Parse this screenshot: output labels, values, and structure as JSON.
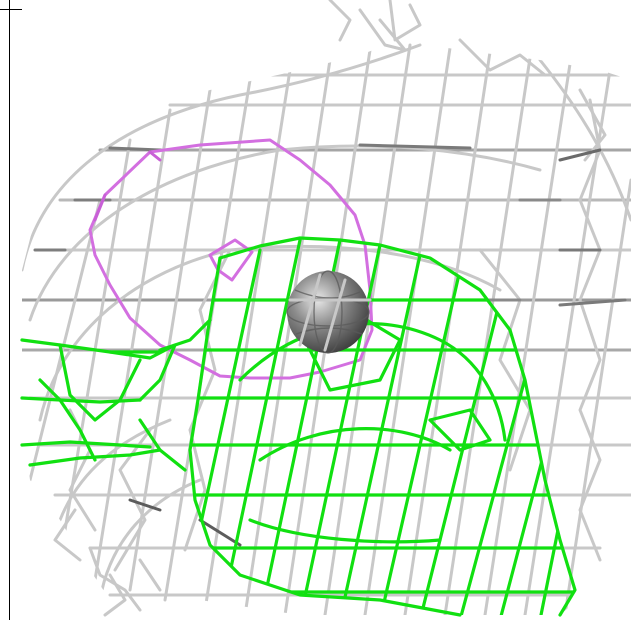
{
  "colors": {
    "background": "#ffffff",
    "mesh_grey": "#c8c8c8",
    "mesh_grey_dark": "#8a8a8a",
    "mesh_magenta": "#d36fe0",
    "mesh_green": "#11e011",
    "sphere": "#7c7c7c"
  },
  "icons": {
    "grey": "grey-wireframe-mesh",
    "magenta": "magenta-wireframe-mesh",
    "green": "green-wireframe-mesh",
    "sphere": "grey-sphere-icon"
  }
}
